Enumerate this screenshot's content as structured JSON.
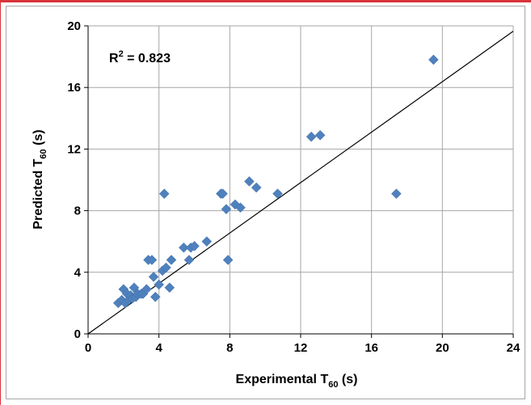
{
  "chart_data": {
    "type": "scatter",
    "xlabel": {
      "main": "Experimental T",
      "sub": "60",
      "unit": " (s)"
    },
    "ylabel": {
      "main": "Predicted T",
      "sub": "60",
      "unit": " (s)"
    },
    "xlim": [
      0,
      24
    ],
    "ylim": [
      0,
      20
    ],
    "xticks": [
      "0",
      "4",
      "8",
      "12",
      "16",
      "20",
      "24"
    ],
    "yticks": [
      "0",
      "4",
      "8",
      "12",
      "16",
      "20"
    ],
    "grid": true,
    "legend": "none",
    "annotation": {
      "prefix": "R",
      "sup": "2",
      "value": " = 0.823"
    },
    "marker_color": "#4f81bd",
    "points": [
      [
        1.7,
        2.0
      ],
      [
        1.9,
        2.2
      ],
      [
        2.0,
        2.9
      ],
      [
        2.1,
        2.0
      ],
      [
        2.2,
        2.6
      ],
      [
        2.3,
        2.2
      ],
      [
        2.4,
        2.5
      ],
      [
        2.5,
        2.3
      ],
      [
        2.6,
        3.0
      ],
      [
        2.7,
        2.4
      ],
      [
        2.8,
        2.6
      ],
      [
        3.0,
        2.6
      ],
      [
        3.1,
        2.6
      ],
      [
        3.3,
        2.9
      ],
      [
        3.4,
        4.8
      ],
      [
        3.6,
        4.8
      ],
      [
        3.7,
        3.7
      ],
      [
        3.8,
        2.4
      ],
      [
        4.0,
        3.2
      ],
      [
        4.2,
        4.1
      ],
      [
        4.3,
        9.1
      ],
      [
        4.4,
        4.3
      ],
      [
        4.6,
        3.0
      ],
      [
        4.7,
        4.8
      ],
      [
        5.4,
        5.6
      ],
      [
        5.7,
        4.8
      ],
      [
        5.8,
        5.6
      ],
      [
        6.0,
        5.7
      ],
      [
        6.7,
        6.0
      ],
      [
        7.5,
        9.1
      ],
      [
        7.6,
        9.1
      ],
      [
        7.8,
        8.1
      ],
      [
        7.9,
        4.8
      ],
      [
        8.3,
        8.4
      ],
      [
        8.6,
        8.2
      ],
      [
        9.1,
        9.9
      ],
      [
        9.5,
        9.5
      ],
      [
        10.7,
        9.1
      ],
      [
        12.6,
        12.8
      ],
      [
        13.1,
        12.9
      ],
      [
        17.4,
        9.1
      ],
      [
        19.5,
        17.8
      ]
    ],
    "trendline": {
      "x1": 0,
      "y1": 0,
      "x2": 24,
      "y2": 19.65
    }
  }
}
